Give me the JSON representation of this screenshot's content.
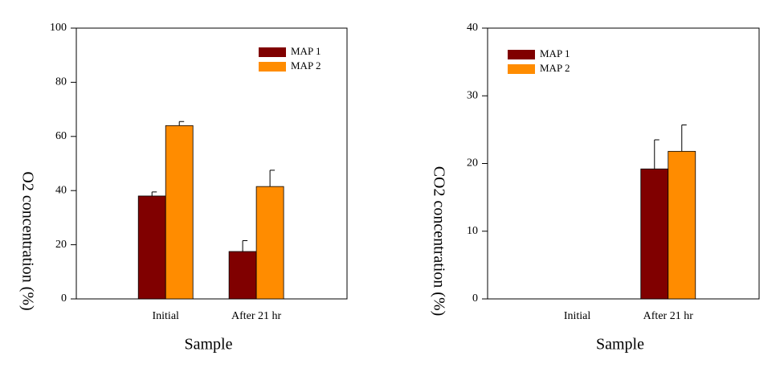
{
  "chart_data": [
    {
      "type": "bar",
      "y_label": "O2 concentration (%)",
      "x_label": "Sample",
      "categories": [
        "Initial",
        "After 21 hr"
      ],
      "series": [
        {
          "name": "MAP 1",
          "color": "#800000",
          "values": [
            38,
            17.5
          ],
          "errors": [
            1.5,
            4
          ]
        },
        {
          "name": "MAP 2",
          "color": "#ff8c00",
          "values": [
            64,
            41.5
          ],
          "errors": [
            1.5,
            6
          ]
        }
      ],
      "ylim": [
        0,
        100
      ],
      "yticks": [
        0,
        20,
        40,
        60,
        80,
        100
      ],
      "legend": "top-right"
    },
    {
      "type": "bar",
      "y_label": "CO2 concentration (%)",
      "x_label": "Sample",
      "categories": [
        "Initial",
        "After 21 hr"
      ],
      "series": [
        {
          "name": "MAP 1",
          "color": "#800000",
          "values": [
            null,
            19.2
          ],
          "errors": [
            null,
            4.3
          ]
        },
        {
          "name": "MAP 2",
          "color": "#ff8c00",
          "values": [
            null,
            21.8
          ],
          "errors": [
            null,
            3.9
          ]
        }
      ],
      "ylim": [
        0,
        40
      ],
      "yticks": [
        0,
        10,
        20,
        30,
        40
      ],
      "legend": "top-left"
    }
  ]
}
